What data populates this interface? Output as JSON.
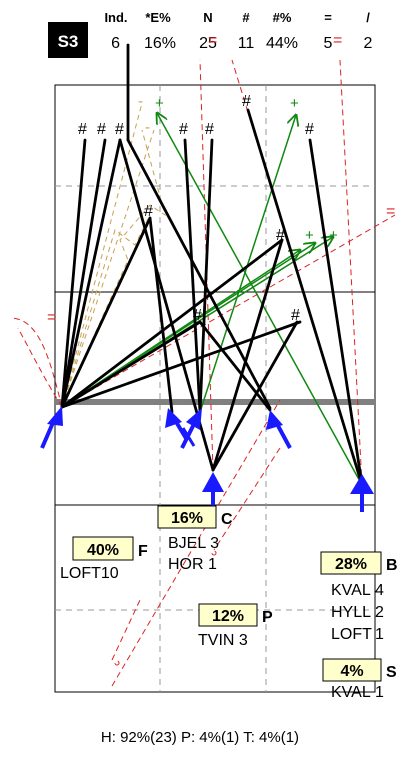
{
  "badge": "S3",
  "stats": {
    "headers": [
      "Ind.",
      "*E%",
      "N",
      "#",
      "#%",
      "=",
      "/"
    ],
    "values": [
      "6",
      "16%",
      "25",
      "11",
      "44%",
      "5",
      "2"
    ]
  },
  "zones": [
    {
      "pct": "16%",
      "letter": "C",
      "items": [
        "BJEL 3",
        "HOR 1"
      ]
    },
    {
      "pct": "40%",
      "letter": "F",
      "items": [
        "LOFT10"
      ]
    },
    {
      "pct": "28%",
      "letter": "B",
      "items": [
        {
          "name": "KVAL",
          "count": "4"
        },
        {
          "name": "HYLL",
          "count": "2"
        },
        {
          "name": "LOFT",
          "count": "1"
        }
      ]
    },
    {
      "pct": "12%",
      "letter": "P",
      "items": [
        "TVIN 3"
      ]
    },
    {
      "pct": "4%",
      "letter": "S",
      "items": [
        {
          "name": "KVAL",
          "count": "1"
        }
      ]
    }
  ],
  "markers": {
    "hash": "#",
    "plus": "+",
    "dash": "-",
    "equals": "="
  },
  "footer": "H: 92%(23)  P: 4%(1)  T: 4%(1)",
  "colors": {
    "black": "#000000",
    "green": "#118811",
    "red_dashed": "#dd2222",
    "tan_dashed": "#c8a050",
    "arrow_blue": "#1a1aff",
    "grey_bar": "#808080",
    "label_bg": "#ffffcc"
  }
}
